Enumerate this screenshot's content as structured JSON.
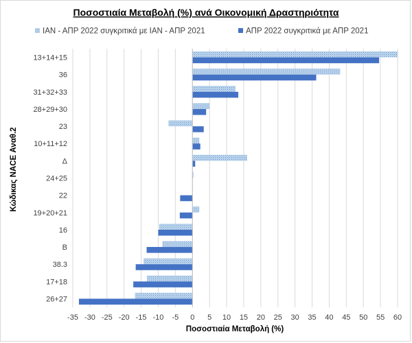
{
  "chart_data": {
    "type": "bar",
    "orientation": "horizontal",
    "title": "Ποσοστιαία Μεταβολή (%) ανά Οικονομική Δραστηριότητα",
    "xlabel": "Ποσοστιαία Μεταβολή (%)",
    "ylabel": "Κώδικας NACE Αναθ.2",
    "xlim": [
      -35,
      60
    ],
    "xticks": [
      -35,
      -30,
      -25,
      -20,
      -15,
      -10,
      -5,
      0,
      5,
      10,
      15,
      20,
      25,
      30,
      35,
      40,
      45,
      50,
      55,
      60
    ],
    "grid": true,
    "legend_position": "top",
    "categories": [
      "13+14+15",
      "36",
      "31+32+33",
      "28+29+30",
      "23",
      "10+11+12",
      "Δ",
      "24+25",
      "22",
      "19+20+21",
      "16",
      "Β",
      "38.3",
      "17+18",
      "26+27"
    ],
    "series": [
      {
        "name": "ΙΑΝ - ΑΠΡ 2022 συγκριτικά με ΙΑΝ - ΑΠΡ 2021",
        "color": "#9dc3e6",
        "pattern": "dotted",
        "values": [
          60.0,
          43.2,
          12.6,
          5.0,
          -7.0,
          2.0,
          16.0,
          0.3,
          0.0,
          2.0,
          -9.7,
          -8.8,
          -14.3,
          -13.3,
          -16.8
        ]
      },
      {
        "name": "ΑΠΡ 2022 συγκριτικά με ΑΠΡ 2021",
        "color": "#4472c4",
        "pattern": "solid",
        "values": [
          54.6,
          36.2,
          13.4,
          4.0,
          3.3,
          2.3,
          0.8,
          0.0,
          -3.6,
          -3.7,
          -10.0,
          -13.4,
          -16.6,
          -17.3,
          -33.2
        ]
      }
    ]
  }
}
